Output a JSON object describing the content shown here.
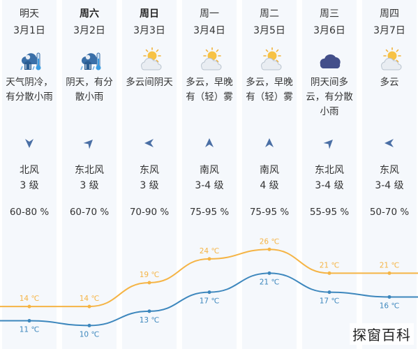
{
  "forecast": [
    {
      "day": "明天",
      "date": "3月1日",
      "desc": "天气阴冷，\n有分散小雨",
      "icon": "rain-person-cold-icon",
      "wind_dir": "北风",
      "wind_level": "3 级",
      "humidity": "60-80 %",
      "high": "14 ℃",
      "low": "11 ℃",
      "bold": false
    },
    {
      "day": "周六",
      "date": "3月2日",
      "desc": "阴天，有分\n散小雨",
      "icon": "rain-person-cold-icon",
      "wind_dir": "东北风",
      "wind_level": "3 级",
      "humidity": "60-70 %",
      "high": "14 ℃",
      "low": "10 ℃",
      "bold": true
    },
    {
      "day": "周日",
      "date": "3月3日",
      "desc": "多云间阴天",
      "icon": "partly-cloudy-icon",
      "wind_dir": "东风",
      "wind_level": "3 级",
      "humidity": "70-90 %",
      "high": "19 ℃",
      "low": "13 ℃",
      "bold": true
    },
    {
      "day": "周一",
      "date": "3月4日",
      "desc": "多云，早晚\n有（轻）雾",
      "icon": "partly-cloudy-icon",
      "wind_dir": "南风",
      "wind_level": "3-4 级",
      "humidity": "75-95 %",
      "high": "24 ℃",
      "low": "17 ℃",
      "bold": false
    },
    {
      "day": "周二",
      "date": "3月5日",
      "desc": "多云，早晚\n有（轻）雾",
      "icon": "partly-cloudy-icon",
      "wind_dir": "南风",
      "wind_level": "4 级",
      "humidity": "75-95 %",
      "high": "26 ℃",
      "low": "21 ℃",
      "bold": false
    },
    {
      "day": "周三",
      "date": "3月6日",
      "desc": "阴天间多\n云，有分散\n小雨",
      "icon": "dark-cloud-icon",
      "wind_dir": "东北风",
      "wind_level": "3-4 级",
      "humidity": "55-95 %",
      "high": "21 ℃",
      "low": "17 ℃",
      "bold": false
    },
    {
      "day": "周四",
      "date": "3月7日",
      "desc": "多云",
      "icon": "partly-cloudy-icon",
      "wind_dir": "东风",
      "wind_level": "3-4 级",
      "humidity": "50-70 %",
      "high": "21 ℃",
      "low": "16 ℃",
      "bold": false
    }
  ],
  "wind_arrow_rotation_deg": [
    180,
    45,
    270,
    0,
    0,
    45,
    270
  ],
  "chart_data": {
    "type": "line",
    "categories": [
      "3月1日",
      "3月2日",
      "3月3日",
      "3月4日",
      "3月5日",
      "3月6日",
      "3月7日"
    ],
    "series": [
      {
        "values": [
          14,
          14,
          19,
          24,
          26,
          21,
          21
        ],
        "color": "#f5b445"
      },
      {
        "values": [
          11,
          10,
          13,
          17,
          21,
          17,
          16
        ],
        "color": "#3d87bd"
      }
    ],
    "ylim": [
      8,
      30
    ]
  },
  "colors": {
    "column_bg": "#f5f8fc",
    "high_line": "#f5b445",
    "low_line": "#3d87bd",
    "arrow": "#4a6fa5"
  },
  "watermark": "探窗百科"
}
